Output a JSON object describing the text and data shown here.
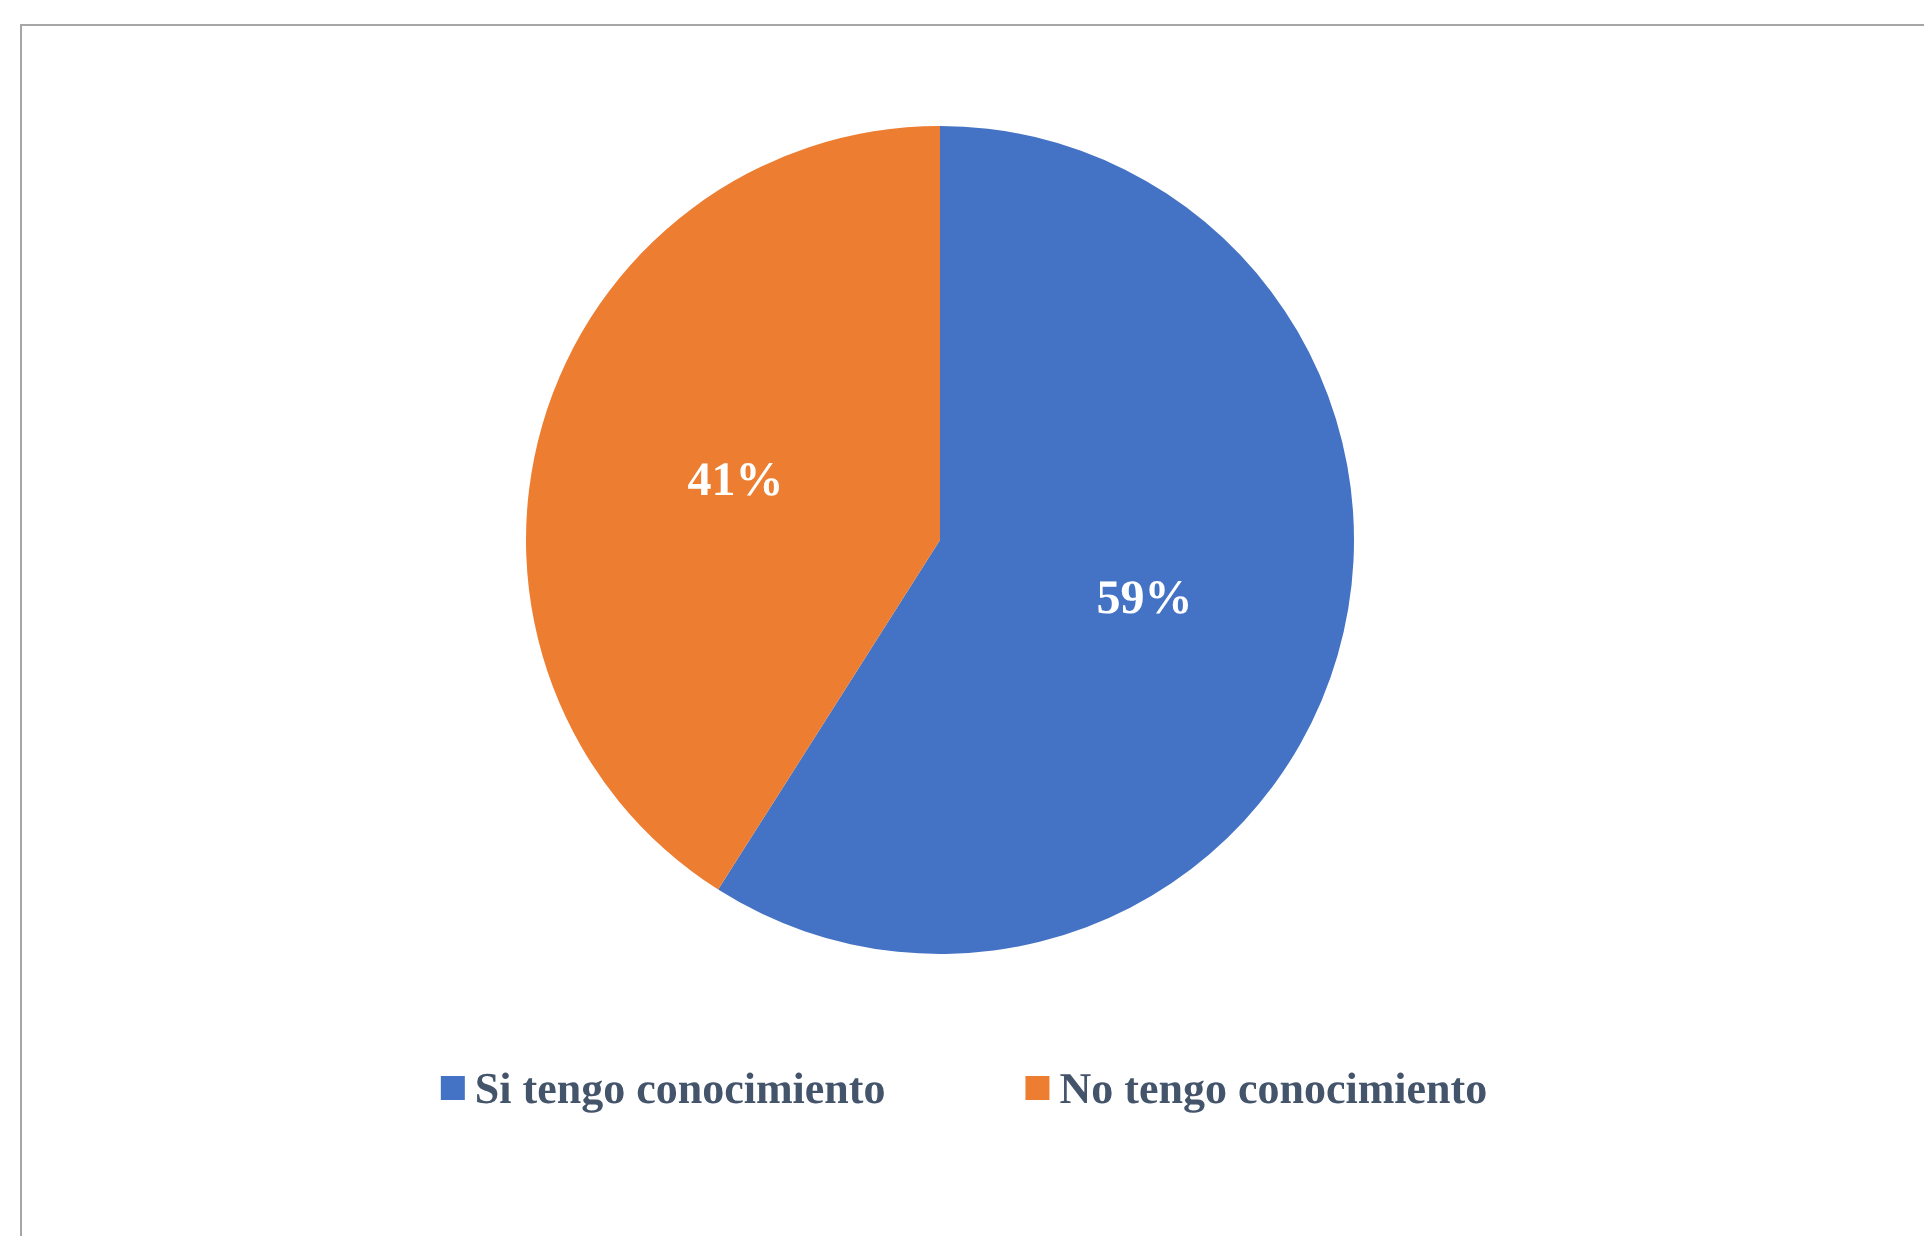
{
  "chart_data": {
    "type": "pie",
    "categories": [
      "Si tengo conocimiento",
      "No tengo conocimiento"
    ],
    "values": [
      59,
      41
    ],
    "colors": [
      "#4472c4",
      "#ed7d31"
    ],
    "value_labels": [
      "59%",
      "41%"
    ],
    "legend": "bottom"
  }
}
